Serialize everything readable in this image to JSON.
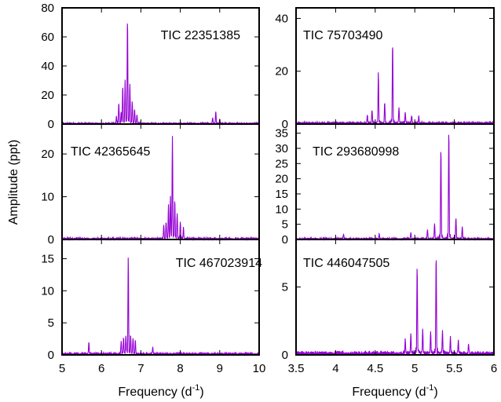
{
  "figure": {
    "ylabel": "Amplitude (ppt)",
    "xlabel_left": "Frequency (d",
    "xlabel_right": "Frequency (d",
    "xlabel_sup": "-1",
    "xlabel_close": ")"
  },
  "colors": {
    "series": "#9400D3",
    "axis": "#000000"
  },
  "chart_data": [
    {
      "type": "line",
      "panel": "top-left",
      "label": "TIC 22351385",
      "xlim": [
        5,
        10
      ],
      "ylim": [
        0,
        80
      ],
      "yticks": [
        0,
        20,
        40,
        60,
        80
      ],
      "xticks": [],
      "peaks": [
        {
          "x": 6.66,
          "y": 72
        },
        {
          "x": 6.6,
          "y": 30
        },
        {
          "x": 6.72,
          "y": 28
        },
        {
          "x": 6.54,
          "y": 26
        },
        {
          "x": 6.5,
          "y": 8
        },
        {
          "x": 6.78,
          "y": 15
        },
        {
          "x": 6.84,
          "y": 10
        },
        {
          "x": 6.9,
          "y": 6
        },
        {
          "x": 6.44,
          "y": 14
        },
        {
          "x": 6.38,
          "y": 5
        },
        {
          "x": 8.9,
          "y": 8
        },
        {
          "x": 8.82,
          "y": 4
        },
        {
          "x": 9.0,
          "y": 3
        }
      ],
      "noise": 1.0
    },
    {
      "type": "line",
      "panel": "top-right",
      "label": "TIC 75703490",
      "xlim": [
        3.5,
        6
      ],
      "ylim": [
        0,
        44
      ],
      "yticks": [
        0,
        20,
        40
      ],
      "xticks": [],
      "peaks": [
        {
          "x": 4.72,
          "y": 30.5
        },
        {
          "x": 4.54,
          "y": 19
        },
        {
          "x": 4.62,
          "y": 8
        },
        {
          "x": 4.8,
          "y": 6
        },
        {
          "x": 4.46,
          "y": 5
        },
        {
          "x": 4.88,
          "y": 4
        },
        {
          "x": 4.4,
          "y": 3
        },
        {
          "x": 4.96,
          "y": 3
        },
        {
          "x": 5.05,
          "y": 2.5
        }
      ],
      "noise": 1.0
    },
    {
      "type": "line",
      "panel": "middle-left",
      "label": "TIC 42365645",
      "xlim": [
        5,
        10
      ],
      "ylim": [
        0,
        27
      ],
      "yticks": [
        0,
        10,
        20
      ],
      "xticks": [],
      "peaks": [
        {
          "x": 7.8,
          "y": 24
        },
        {
          "x": 7.75,
          "y": 10
        },
        {
          "x": 7.86,
          "y": 9
        },
        {
          "x": 7.7,
          "y": 8
        },
        {
          "x": 7.92,
          "y": 6
        },
        {
          "x": 7.64,
          "y": 4
        },
        {
          "x": 8.0,
          "y": 4
        },
        {
          "x": 7.58,
          "y": 3
        },
        {
          "x": 8.08,
          "y": 2.5
        }
      ],
      "noise": 0.5
    },
    {
      "type": "line",
      "panel": "middle-right",
      "label": "TIC 293680998",
      "xlim": [
        3.5,
        6
      ],
      "ylim": [
        0,
        38
      ],
      "yticks": [
        0,
        5,
        10,
        15,
        20,
        25,
        30,
        35
      ],
      "xticks": [],
      "peaks": [
        {
          "x": 5.43,
          "y": 36
        },
        {
          "x": 5.33,
          "y": 30
        },
        {
          "x": 5.25,
          "y": 5
        },
        {
          "x": 5.52,
          "y": 7
        },
        {
          "x": 5.16,
          "y": 3
        },
        {
          "x": 5.6,
          "y": 4
        },
        {
          "x": 4.95,
          "y": 2
        },
        {
          "x": 4.1,
          "y": 1.5
        },
        {
          "x": 4.55,
          "y": 1.5
        }
      ],
      "noise": 0.6
    },
    {
      "type": "line",
      "panel": "bottom-left",
      "label": "TIC 467023914",
      "xlim": [
        5,
        10
      ],
      "ylim": [
        0,
        18
      ],
      "yticks": [
        0,
        5,
        10,
        15
      ],
      "xticks": [
        5,
        6,
        7,
        8,
        9,
        10
      ],
      "peaks": [
        {
          "x": 6.68,
          "y": 15.2
        },
        {
          "x": 6.62,
          "y": 3
        },
        {
          "x": 6.74,
          "y": 3
        },
        {
          "x": 6.56,
          "y": 2.5
        },
        {
          "x": 6.8,
          "y": 2.5
        },
        {
          "x": 6.5,
          "y": 2
        },
        {
          "x": 6.86,
          "y": 2
        },
        {
          "x": 5.68,
          "y": 1.8
        },
        {
          "x": 7.3,
          "y": 1
        }
      ],
      "noise": 0.4
    },
    {
      "type": "line",
      "panel": "bottom-right",
      "label": "TIC 446047505",
      "xlim": [
        3.5,
        6
      ],
      "ylim": [
        0,
        8.5
      ],
      "yticks": [
        0,
        5
      ],
      "xticks": [
        3.5,
        4,
        4.5,
        5,
        5.5,
        6
      ],
      "peaks": [
        {
          "x": 5.27,
          "y": 7.3
        },
        {
          "x": 5.03,
          "y": 6.4
        },
        {
          "x": 5.1,
          "y": 1.8
        },
        {
          "x": 5.2,
          "y": 1.6
        },
        {
          "x": 4.95,
          "y": 1.5
        },
        {
          "x": 5.35,
          "y": 1.6
        },
        {
          "x": 5.45,
          "y": 1.2
        },
        {
          "x": 4.88,
          "y": 1.0
        },
        {
          "x": 5.55,
          "y": 0.9
        },
        {
          "x": 5.68,
          "y": 0.7
        }
      ],
      "noise": 0.3
    }
  ]
}
